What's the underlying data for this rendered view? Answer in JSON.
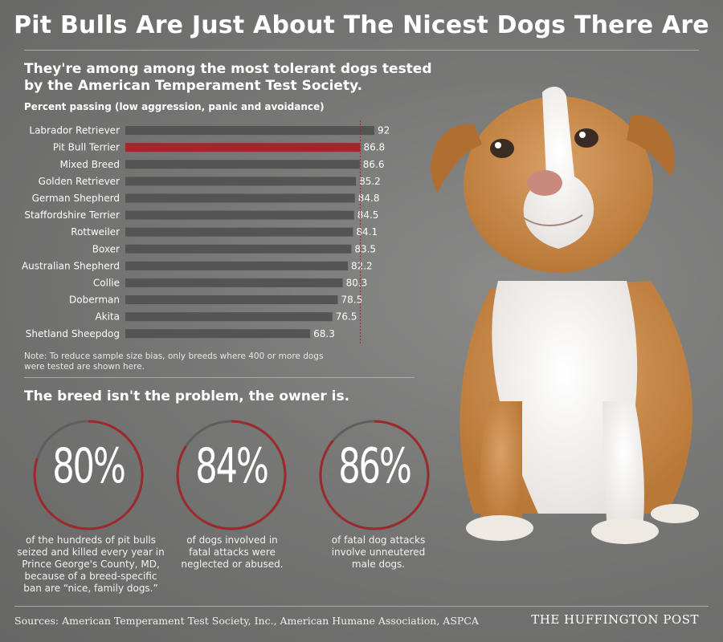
{
  "title": "Pit Bulls Are Just About The Nicest Dogs There Are",
  "subtitle": "They're among among the most tolerant dogs tested by the American Temperament Test Society.",
  "axis_label": "Percent passing (low aggression, panic and avoidance)",
  "note": "Note: To reduce sample size bias, only breeds where 400 or more dogs were tested are shown here.",
  "section_head": "The breed isn't the problem, the owner is.",
  "stats": [
    {
      "value": "80%",
      "fraction": 0.8,
      "caption": "of the hundreds of pit bulls seized and killed every year in Prince George's County, MD, because of a breed-specific ban are “nice, family dogs.”"
    },
    {
      "value": "84%",
      "fraction": 0.84,
      "caption": "of dogs involved in fatal attacks were neglected or abused."
    },
    {
      "value": "86%",
      "fraction": 0.86,
      "caption": "of fatal dog attacks involve unneutered male dogs."
    }
  ],
  "sources": "Sources: American Temperament Test Society, Inc., American Humane Association, ASPCA",
  "brand": "THE HUFFINGTON POST",
  "colors": {
    "bar": "#545454",
    "highlight": "#a3262a",
    "ring": "#9c2a2d",
    "ring_track": "#5e5e5e"
  },
  "chart_data": {
    "type": "bar",
    "orientation": "horizontal",
    "categories": [
      "Labrador Retriever",
      "Pit Bull Terrier",
      "Mixed Breed",
      "Golden Retriever",
      "German Shepherd",
      "Staffordshire Terrier",
      "Rottweiler",
      "Boxer",
      "Australian Shepherd",
      "Collie",
      "Doberman",
      "Akita",
      "Shetland Sheepdog"
    ],
    "values": [
      92,
      86.8,
      86.6,
      85.2,
      84.8,
      84.5,
      84.1,
      83.5,
      82.2,
      80.3,
      78.5,
      76.5,
      68.3
    ],
    "highlight": "Pit Bull Terrier",
    "reference_line": 86.8,
    "xlim": [
      0,
      92
    ],
    "data_labels": true,
    "grid": false
  }
}
